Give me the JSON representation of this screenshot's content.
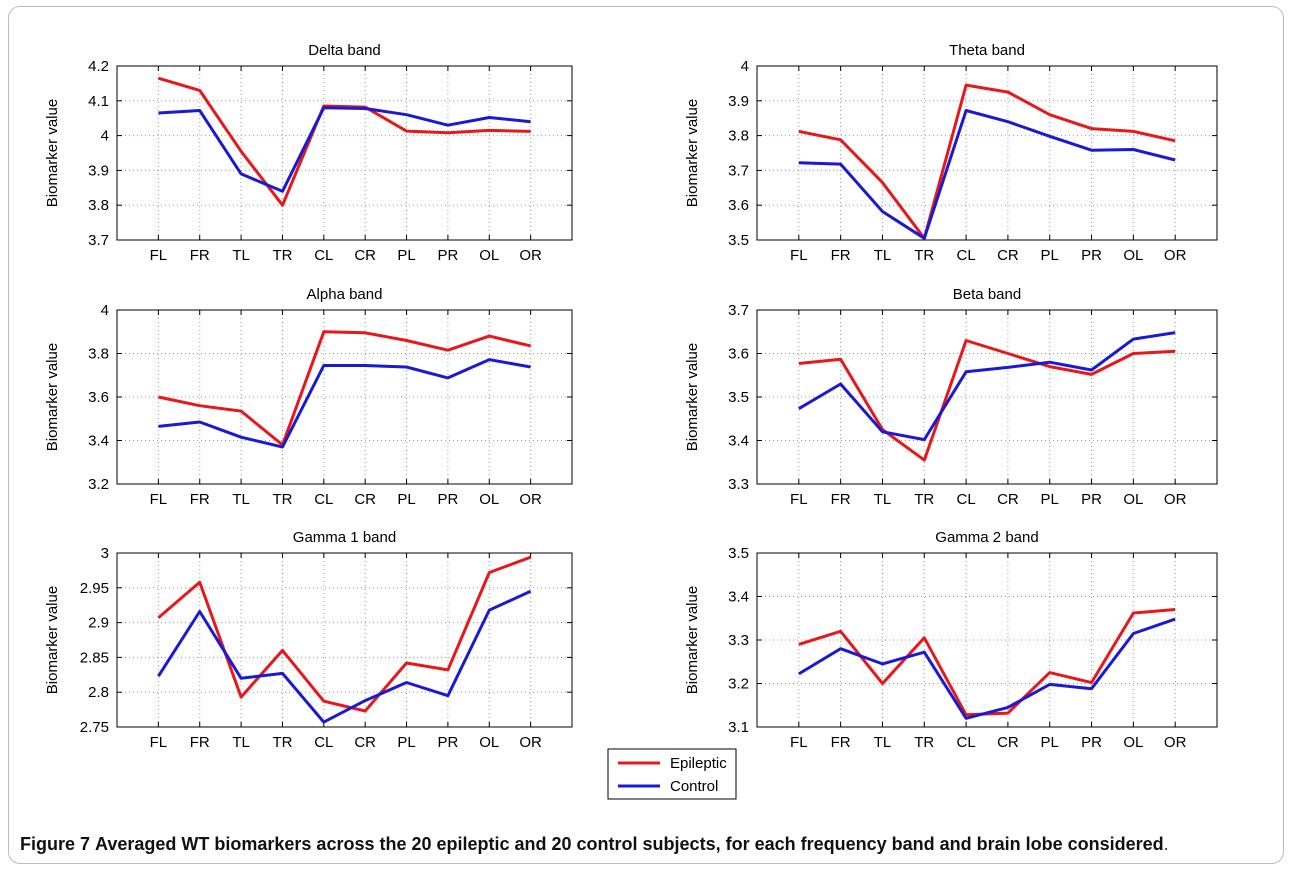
{
  "figure": {
    "caption_label": "Figure 7",
    "caption_text": "Averaged WT biomarkers across the 20 epileptic and 20 control subjects, for each frequency band and brain lobe considered",
    "caption_end": "."
  },
  "colors": {
    "epileptic": "#e8171a",
    "control": "#1a1ad6",
    "grid": "#9a9a9a",
    "axis": "#000000"
  },
  "legend": {
    "entries": [
      "Epileptic",
      "Control"
    ],
    "placement": "bottom-center"
  },
  "chart_data": [
    {
      "type": "line",
      "title": "Delta band",
      "ylabel": "Biomarker value",
      "xlabel": "",
      "categories": [
        "FL",
        "FR",
        "TL",
        "TR",
        "CL",
        "CR",
        "PL",
        "PR",
        "OL",
        "OR"
      ],
      "ylim": [
        3.7,
        4.2
      ],
      "yticks": [
        "3.7",
        "3.8",
        "3.9",
        "4",
        "4.1",
        "4.2"
      ],
      "grid": true,
      "series": [
        {
          "name": "Epileptic",
          "values": [
            4.165,
            4.13,
            3.955,
            3.8,
            4.085,
            4.082,
            4.013,
            4.008,
            4.015,
            4.012
          ]
        },
        {
          "name": "Control",
          "values": [
            4.065,
            4.072,
            3.89,
            3.84,
            4.08,
            4.078,
            4.06,
            4.03,
            4.052,
            4.04
          ]
        }
      ]
    },
    {
      "type": "line",
      "title": "Theta band",
      "ylabel": "Biomarker value",
      "xlabel": "",
      "categories": [
        "FL",
        "FR",
        "TL",
        "TR",
        "CL",
        "CR",
        "PL",
        "PR",
        "OL",
        "OR"
      ],
      "ylim": [
        3.5,
        4.0
      ],
      "yticks": [
        "3.5",
        "3.6",
        "3.7",
        "3.8",
        "3.9",
        "4"
      ],
      "grid": true,
      "series": [
        {
          "name": "Epileptic",
          "values": [
            3.812,
            3.788,
            3.665,
            3.505,
            3.945,
            3.925,
            3.86,
            3.82,
            3.812,
            3.785
          ]
        },
        {
          "name": "Control",
          "values": [
            3.722,
            3.718,
            3.582,
            3.505,
            3.872,
            3.84,
            3.798,
            3.758,
            3.76,
            3.73
          ]
        }
      ]
    },
    {
      "type": "line",
      "title": "Alpha band",
      "ylabel": "Biomarker value",
      "xlabel": "",
      "categories": [
        "FL",
        "FR",
        "TL",
        "TR",
        "CL",
        "CR",
        "PL",
        "PR",
        "OL",
        "OR"
      ],
      "ylim": [
        3.2,
        4.0
      ],
      "yticks": [
        "3.2",
        "3.4",
        "3.6",
        "3.8",
        "4"
      ],
      "grid": true,
      "series": [
        {
          "name": "Epileptic",
          "values": [
            3.6,
            3.56,
            3.535,
            3.38,
            3.9,
            3.895,
            3.86,
            3.815,
            3.88,
            3.835
          ]
        },
        {
          "name": "Control",
          "values": [
            3.465,
            3.485,
            3.415,
            3.37,
            3.745,
            3.745,
            3.738,
            3.688,
            3.772,
            3.738
          ]
        }
      ]
    },
    {
      "type": "line",
      "title": "Beta band",
      "ylabel": "Biomarker value",
      "xlabel": "",
      "categories": [
        "FL",
        "FR",
        "TL",
        "TR",
        "CL",
        "CR",
        "PL",
        "PR",
        "OL",
        "OR"
      ],
      "ylim": [
        3.3,
        3.7
      ],
      "yticks": [
        "3.3",
        "3.4",
        "3.5",
        "3.6",
        "3.7"
      ],
      "grid": true,
      "series": [
        {
          "name": "Epileptic",
          "values": [
            3.577,
            3.587,
            3.425,
            3.355,
            3.63,
            3.6,
            3.57,
            3.552,
            3.6,
            3.605
          ]
        },
        {
          "name": "Control",
          "values": [
            3.473,
            3.53,
            3.42,
            3.402,
            3.558,
            3.568,
            3.58,
            3.562,
            3.633,
            3.648
          ]
        }
      ]
    },
    {
      "type": "line",
      "title": "Gamma 1 band",
      "ylabel": "Biomarker value",
      "xlabel": "",
      "categories": [
        "FL",
        "FR",
        "TL",
        "TR",
        "CL",
        "CR",
        "PL",
        "PR",
        "OL",
        "OR"
      ],
      "ylim": [
        2.75,
        3.0
      ],
      "yticks": [
        "2.75",
        "2.8",
        "2.85",
        "2.9",
        "2.95",
        "3"
      ],
      "grid": true,
      "series": [
        {
          "name": "Epileptic",
          "values": [
            2.907,
            2.958,
            2.793,
            2.86,
            2.787,
            2.773,
            2.842,
            2.832,
            2.972,
            2.994
          ]
        },
        {
          "name": "Control",
          "values": [
            2.823,
            2.916,
            2.82,
            2.827,
            2.757,
            2.788,
            2.814,
            2.795,
            2.918,
            2.945
          ]
        }
      ]
    },
    {
      "type": "line",
      "title": "Gamma 2 band",
      "ylabel": "Biomarker value",
      "xlabel": "",
      "categories": [
        "FL",
        "FR",
        "TL",
        "TR",
        "CL",
        "CR",
        "PL",
        "PR",
        "OL",
        "OR"
      ],
      "ylim": [
        3.1,
        3.5
      ],
      "yticks": [
        "3.1",
        "3.2",
        "3.3",
        "3.4",
        "3.5"
      ],
      "grid": true,
      "series": [
        {
          "name": "Epileptic",
          "values": [
            3.29,
            3.32,
            3.2,
            3.305,
            3.128,
            3.132,
            3.225,
            3.202,
            3.362,
            3.37
          ]
        },
        {
          "name": "Control",
          "values": [
            3.222,
            3.28,
            3.245,
            3.272,
            3.12,
            3.145,
            3.198,
            3.188,
            3.315,
            3.348
          ]
        }
      ]
    }
  ]
}
